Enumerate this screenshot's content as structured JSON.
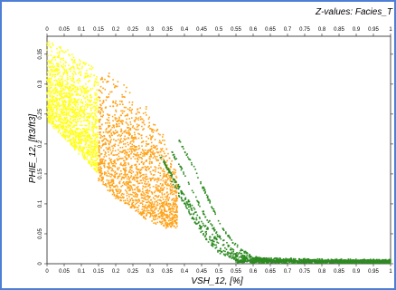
{
  "chart_data": {
    "type": "scatter",
    "title": "",
    "z_label": "Z-values: Facies_T",
    "xlabel": "VSH_12, [%]",
    "ylabel": "PHIE_12, [ft3/ft3]",
    "xlim": [
      0,
      1
    ],
    "ylim": [
      0,
      0.38
    ],
    "x_ticks": [
      "0",
      "0.05",
      "0.1",
      "0.15",
      "0.2",
      "0.25",
      "0.3",
      "0.35",
      "0.4",
      "0.45",
      "0.5",
      "0.55",
      "0.6",
      "0.65",
      "0.7",
      "0.75",
      "0.8",
      "0.85",
      "0.9",
      "0.95",
      "1"
    ],
    "y_ticks": [
      "0",
      "0.05",
      "0.1",
      "0.15",
      "0.2",
      "0.25",
      "0.3",
      "0.35"
    ],
    "grid": false,
    "legend": "none",
    "series": [
      {
        "color": "#ffff1a",
        "x_range": [
          0,
          0.15
        ],
        "upper_boundary": [
          [
            0,
            0.38
          ],
          [
            0.15,
            0.33
          ]
        ],
        "lower_boundary": [
          [
            0,
            0.24
          ],
          [
            0.05,
            0.21
          ],
          [
            0.1,
            0.18
          ],
          [
            0.15,
            0.15
          ]
        ]
      },
      {
        "color": "#ffa31a",
        "x_range": [
          0.15,
          0.38
        ],
        "upper_boundary": [
          [
            0.15,
            0.33
          ],
          [
            0.2,
            0.31
          ],
          [
            0.25,
            0.29
          ],
          [
            0.3,
            0.26
          ],
          [
            0.35,
            0.21
          ],
          [
            0.38,
            0.15
          ]
        ],
        "lower_boundary": [
          [
            0.15,
            0.14
          ],
          [
            0.2,
            0.11
          ],
          [
            0.25,
            0.09
          ],
          [
            0.3,
            0.07
          ],
          [
            0.35,
            0.06
          ],
          [
            0.38,
            0.06
          ]
        ]
      },
      {
        "color": "#2e8b22",
        "x_range": [
          0.33,
          1
        ],
        "curves": [
          [
            [
              0.33,
              0.18
            ],
            [
              0.36,
              0.15
            ],
            [
              0.4,
              0.115
            ],
            [
              0.45,
              0.07
            ],
            [
              0.5,
              0.035
            ],
            [
              0.55,
              0.015
            ],
            [
              0.6,
              0.005
            ],
            [
              0.65,
              0.003
            ],
            [
              1,
              0.003
            ]
          ],
          [
            [
              0.34,
              0.17
            ],
            [
              0.37,
              0.14
            ],
            [
              0.41,
              0.1
            ],
            [
              0.45,
              0.06
            ],
            [
              0.5,
              0.025
            ],
            [
              0.55,
              0.01
            ],
            [
              0.6,
              0.004
            ],
            [
              1,
              0.003
            ]
          ],
          [
            [
              0.35,
              0.15
            ],
            [
              0.38,
              0.12
            ],
            [
              0.42,
              0.08
            ],
            [
              0.46,
              0.045
            ],
            [
              0.5,
              0.02
            ],
            [
              0.55,
              0.008
            ],
            [
              1,
              0.002
            ]
          ],
          [
            [
              0.36,
              0.19
            ],
            [
              0.4,
              0.15
            ],
            [
              0.45,
              0.09
            ],
            [
              0.5,
              0.045
            ],
            [
              0.55,
              0.018
            ],
            [
              0.6,
              0.007
            ],
            [
              1,
              0.004
            ]
          ],
          [
            [
              0.38,
              0.21
            ],
            [
              0.42,
              0.17
            ],
            [
              0.46,
              0.12
            ],
            [
              0.5,
              0.07
            ],
            [
              0.55,
              0.03
            ],
            [
              0.6,
              0.01
            ],
            [
              0.65,
              0.005
            ],
            [
              1,
              0.004
            ]
          ]
        ],
        "baseline": [
          [
            0.55,
            0.004
          ],
          [
            1,
            0.004
          ]
        ]
      }
    ]
  }
}
